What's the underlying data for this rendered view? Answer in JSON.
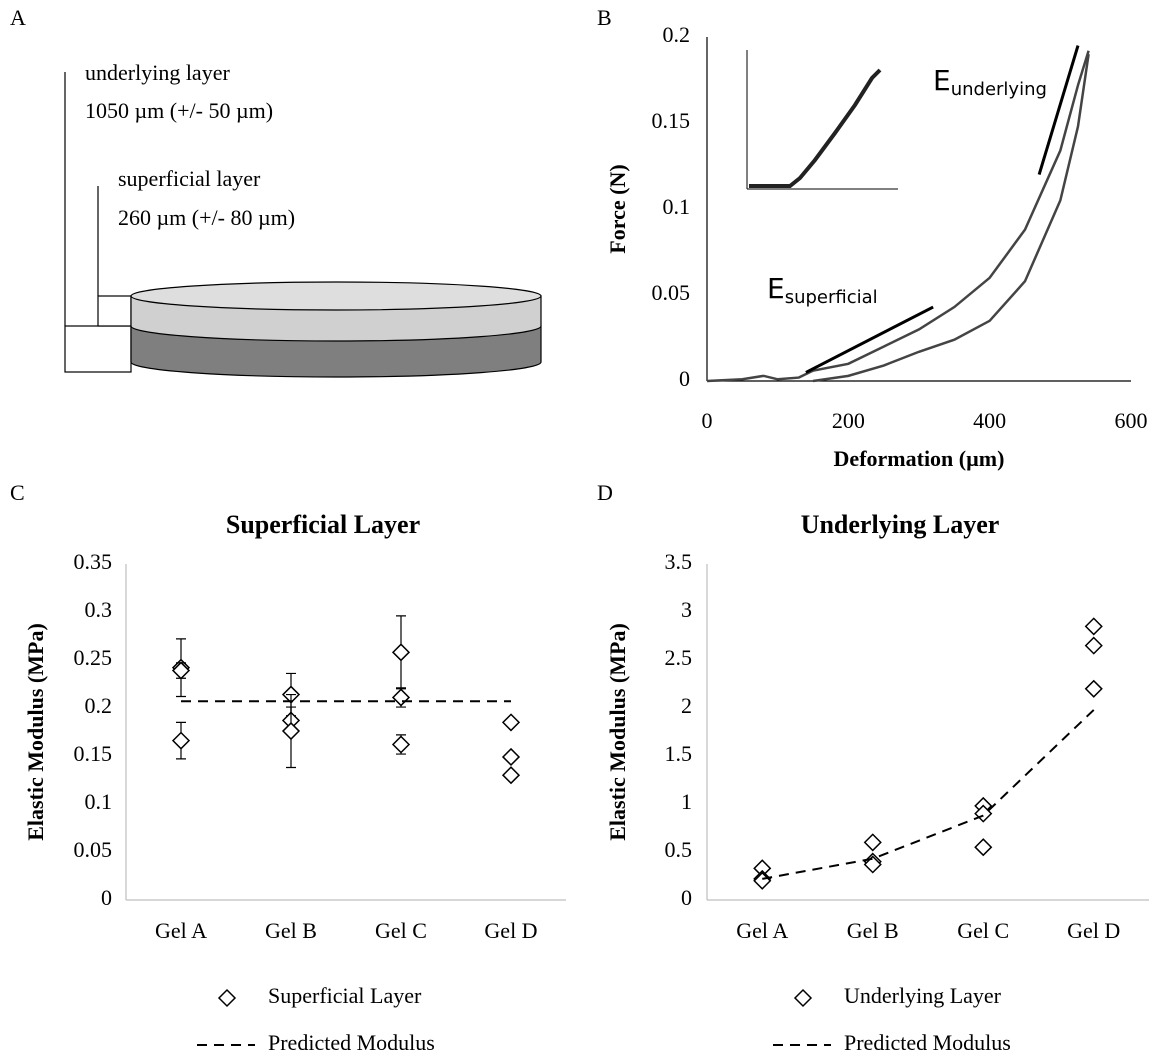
{
  "panels": [
    "A",
    "B",
    "C",
    "D"
  ],
  "diagram": {
    "underlying_label": "underlying layer",
    "underlying_thickness": "1050 µm (+/- 50 µm)",
    "superficial_label": "superficial layer",
    "superficial_thickness": "260 µm (+/- 80 µm)"
  },
  "chart_data": [
    {
      "type": "line",
      "x_label": "Deformation (µm)",
      "y_label": "Force (N)",
      "x": [
        0,
        50,
        80,
        100,
        130,
        150,
        200,
        250,
        300,
        350,
        400,
        450,
        500,
        525,
        540
      ],
      "series": [
        {
          "color": "#444444",
          "values": [
            0,
            0.001,
            0.003,
            0.001,
            0.002,
            0.006,
            0.01,
            0.02,
            0.03,
            0.043,
            0.06,
            0.088,
            0.134,
            0.172,
            0.192
          ]
        },
        {
          "color": "#444444",
          "values": [
            null,
            null,
            null,
            null,
            null,
            0,
            0.003,
            0.009,
            0.017,
            0.024,
            0.035,
            0.058,
            0.105,
            0.148,
            0.19
          ]
        }
      ],
      "annotations": [
        {
          "text": "E",
          "subscript": "superficial",
          "x": [
            140,
            320
          ],
          "y": [
            0.005,
            0.043
          ]
        },
        {
          "text": "E",
          "subscript": "underlying",
          "x": [
            470,
            525
          ],
          "y": [
            0.12,
            0.195
          ]
        }
      ],
      "xlim": [
        0,
        600
      ],
      "xticks": [
        0,
        200,
        400,
        600
      ],
      "ylim": [
        0,
        0.2
      ],
      "yticks": [
        0,
        0.05,
        0.1,
        0.15,
        0.2
      ],
      "grid": false
    },
    {
      "type": "scatter",
      "title": "Superficial Layer",
      "y_label": "Elastic Modulus (MPa)",
      "categories": [
        "Gel A",
        "Gel B",
        "Gel C",
        "Gel D"
      ],
      "series": [
        {
          "name": "Superficial Layer",
          "color": "#000000",
          "marker": "diamond",
          "values": [
            [
              0.242,
              0.239,
              0.166
            ],
            [
              0.214,
              0.187,
              0.176
            ],
            [
              0.258,
              0.211,
              0.162
            ],
            [
              0.185,
              0.149,
              0.13
            ]
          ],
          "errors": [
            [
              0.03,
              0.008,
              0.019
            ],
            [
              0.022,
              0.014,
              0.038
            ],
            [
              0.038,
              0.01,
              0.01
            ],
            [
              0.003,
              0,
              0
            ]
          ]
        },
        {
          "name": "Predicted Modulus",
          "color": "#000000",
          "linestyle": "dashed",
          "values": [
            0.207,
            0.207,
            0.207,
            0.207
          ]
        }
      ],
      "ylim": [
        0,
        0.35
      ],
      "yticks": [
        0,
        0.05,
        0.1,
        0.15,
        0.2,
        0.25,
        0.3,
        0.35
      ],
      "grid": false
    },
    {
      "type": "scatter",
      "title": "Underlying Layer",
      "y_label": "Elastic Modulus (MPa)",
      "categories": [
        "Gel A",
        "Gel B",
        "Gel C",
        "Gel D"
      ],
      "series": [
        {
          "name": "Underlying Layer",
          "color": "#000000",
          "marker": "diamond",
          "values": [
            [
              0.33,
              0.22,
              0.2
            ],
            [
              0.6,
              0.4,
              0.37
            ],
            [
              0.98,
              0.9,
              0.55
            ],
            [
              2.85,
              2.65,
              2.2
            ]
          ]
        },
        {
          "name": "Predicted Modulus",
          "color": "#000000",
          "linestyle": "dashed",
          "values": [
            0.22,
            0.43,
            0.88,
            1.98
          ]
        }
      ],
      "ylim": [
        0,
        3.5
      ],
      "yticks": [
        0,
        0.5,
        1,
        1.5,
        2,
        2.5,
        3,
        3.5
      ],
      "grid": false
    }
  ]
}
